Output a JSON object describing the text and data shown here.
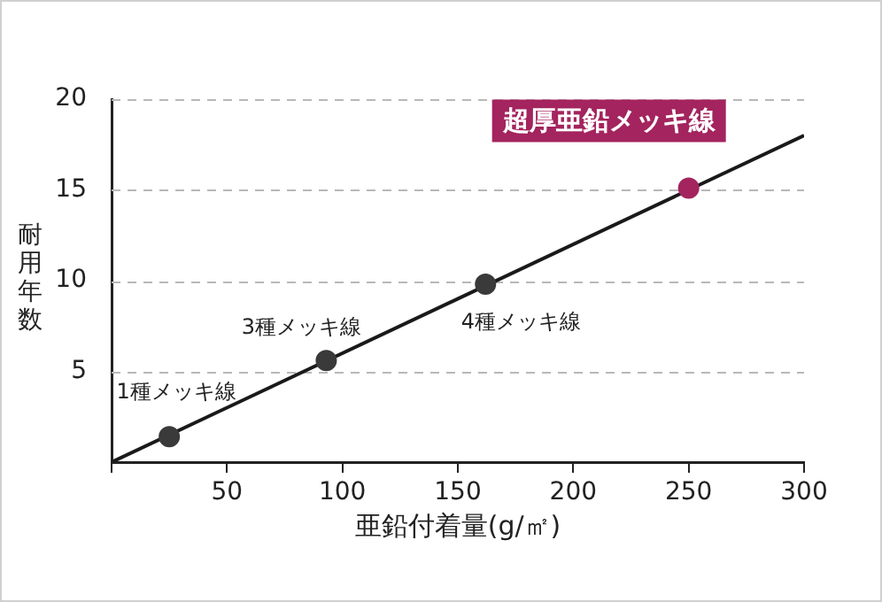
{
  "chart_data": {
    "type": "line",
    "xlabel": "亜鉛付着量(g/㎡)",
    "ylabel": "耐用年数",
    "xlim": [
      0,
      300
    ],
    "xticks": [
      {
        "value": 0,
        "label": null
      },
      50,
      100,
      150,
      200,
      250,
      300
    ],
    "ylim": [
      0,
      20
    ],
    "yticks": [
      {
        "value": 0,
        "label": null
      },
      5,
      10,
      15,
      20
    ],
    "grid": "y",
    "legend": false,
    "series": [
      {
        "type": "line",
        "x": [
          0,
          300
        ],
        "values": [
          0,
          18
        ],
        "color": "#1a1a1a",
        "marker": "none"
      },
      {
        "type": "scatter",
        "x": [
          25,
          93,
          162,
          250
        ],
        "values": [
          1.4,
          5.6,
          9.8,
          15.1
        ],
        "color": "#3a3a3a",
        "colors": [
          "#3a3a3a",
          "#3a3a3a",
          "#3a3a3a",
          "#a3245e"
        ],
        "marker": "circle"
      }
    ],
    "annotations": [
      {
        "text": "1種メッキ線",
        "x": 25,
        "y": 1.4
      },
      {
        "text": "3種メッキ線",
        "x": 93,
        "y": 5.6
      },
      {
        "text": "4種メッキ線",
        "x": 162,
        "y": 9.8
      },
      {
        "text": "超厚亜鉛メッキ線",
        "x": 250,
        "y": 15.1
      }
    ]
  }
}
